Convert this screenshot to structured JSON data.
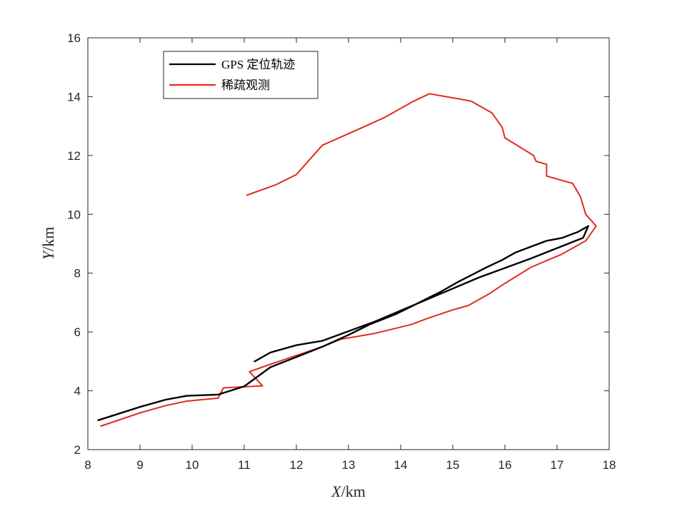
{
  "chart_data": {
    "type": "line",
    "xlabel": {
      "var": "X",
      "unit": "/km"
    },
    "ylabel": {
      "var": "Y",
      "unit": "/km"
    },
    "xlim": [
      8,
      18
    ],
    "ylim": [
      2,
      16
    ],
    "xticks": [
      8,
      9,
      10,
      11,
      12,
      13,
      14,
      15,
      16,
      17,
      18
    ],
    "yticks": [
      2,
      4,
      6,
      8,
      10,
      12,
      14,
      16
    ],
    "grid": false,
    "legend_position": "top-left",
    "series": [
      {
        "name": "GPS 定位轨迹",
        "color": "#000000",
        "x": [
          8.2,
          9.0,
          9.5,
          9.9,
          10.5,
          11.0,
          11.5,
          12.0,
          12.5,
          13.0,
          13.4,
          13.9,
          14.3,
          14.75,
          15.1,
          15.65,
          15.95,
          16.2,
          16.5,
          16.8,
          17.1,
          17.4,
          17.55,
          17.6,
          17.5,
          16.5,
          15.5,
          14.5,
          13.5,
          12.5,
          12.0,
          11.5,
          11.2
        ],
        "y": [
          3.0,
          3.45,
          3.7,
          3.83,
          3.87,
          4.15,
          4.8,
          5.15,
          5.5,
          5.9,
          6.25,
          6.6,
          6.95,
          7.35,
          7.7,
          8.2,
          8.45,
          8.7,
          8.9,
          9.1,
          9.2,
          9.4,
          9.55,
          9.6,
          9.2,
          8.5,
          7.85,
          7.1,
          6.35,
          5.7,
          5.55,
          5.3,
          5.0
        ]
      },
      {
        "name": "稀疏观测",
        "color": "#e02c20",
        "x": [
          8.25,
          9.0,
          9.5,
          9.9,
          10.5,
          10.6,
          11.35,
          11.1,
          11.5,
          12.0,
          12.5,
          12.85,
          13.5,
          14.2,
          14.5,
          15.0,
          15.3,
          15.7,
          16.0,
          16.5,
          17.1,
          17.55,
          17.75,
          17.55,
          17.45,
          17.3,
          16.8,
          16.8,
          16.6,
          16.55,
          16.0,
          15.95,
          15.75,
          15.35,
          14.55,
          14.2,
          13.7,
          13.2,
          12.5,
          12.0,
          11.6,
          11.05
        ],
        "y": [
          2.8,
          3.25,
          3.5,
          3.65,
          3.75,
          4.1,
          4.17,
          4.65,
          4.9,
          5.2,
          5.5,
          5.75,
          5.95,
          6.25,
          6.45,
          6.75,
          6.9,
          7.3,
          7.65,
          8.2,
          8.65,
          9.1,
          9.6,
          10.0,
          10.6,
          11.05,
          11.3,
          11.7,
          11.8,
          12.0,
          12.6,
          12.95,
          13.45,
          13.85,
          14.1,
          13.8,
          13.3,
          12.9,
          12.35,
          11.35,
          11.0,
          10.65
        ]
      }
    ]
  }
}
